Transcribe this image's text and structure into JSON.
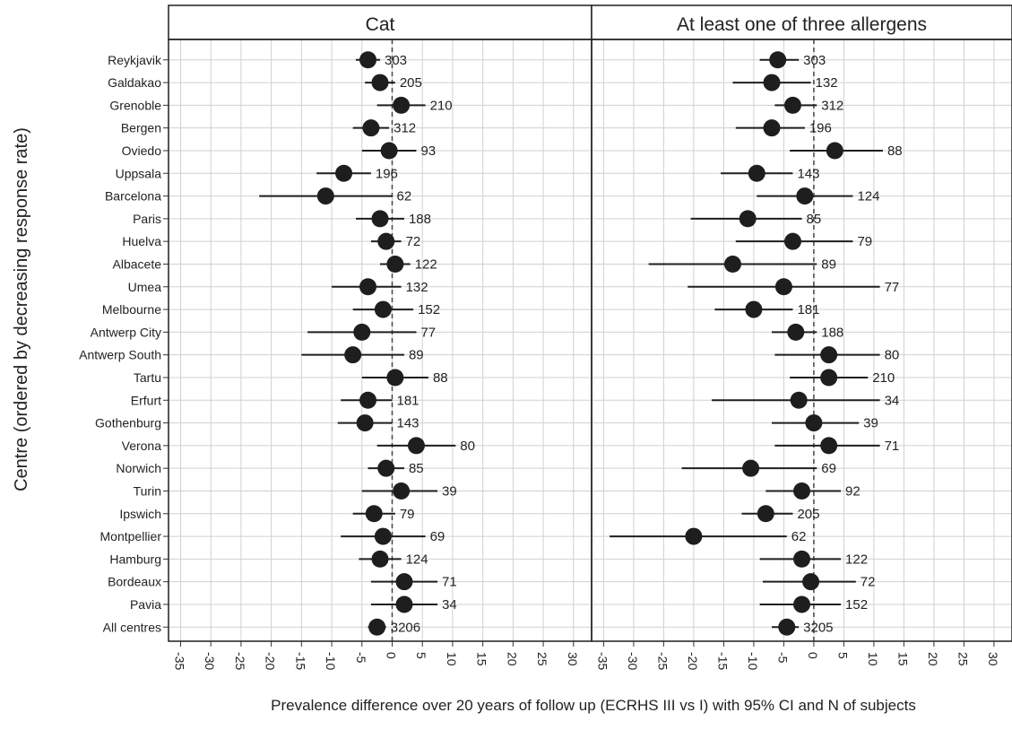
{
  "figure": {
    "ylabel": "Centre (ordered by decreasing response rate)",
    "xlabel": "Prevalence difference over 20 years of follow up (ECRHS III vs I) with 95% CI and N of subjects"
  },
  "chart_data": {
    "type": "scatter",
    "subtype": "forest-plot",
    "centres": [
      "Reykjavik",
      "Galdakao",
      "Grenoble",
      "Bergen",
      "Oviedo",
      "Uppsala",
      "Barcelona",
      "Paris",
      "Huelva",
      "Albacete",
      "Umea",
      "Melbourne",
      "Antwerp City",
      "Antwerp South",
      "Tartu",
      "Erfurt",
      "Gothenburg",
      "Verona",
      "Norwich",
      "Turin",
      "Ipswich",
      "Montpellier",
      "Hamburg",
      "Bordeaux",
      "Pavia",
      "All centres"
    ],
    "xlim": [
      -37,
      33
    ],
    "xticks": [
      "-35",
      "-30",
      "-25",
      "-20",
      "-15",
      "-10",
      "-5",
      "0",
      "5",
      "10",
      "15",
      "20",
      "25",
      "30"
    ],
    "reference_line": 0,
    "grid": true,
    "panels": [
      {
        "title": "Cat",
        "estimates": [
          -4.0,
          -2.0,
          1.5,
          -3.5,
          -0.5,
          -8.0,
          -11.0,
          -2.0,
          -1.0,
          0.5,
          -4.0,
          -1.5,
          -5.0,
          -6.5,
          0.5,
          -4.0,
          -4.5,
          4.0,
          -1.0,
          1.5,
          -3.0,
          -1.5,
          -2.0,
          2.0,
          2.0,
          -2.5
        ],
        "ci_low": [
          -6.0,
          -4.5,
          -2.5,
          -6.5,
          -5.0,
          -12.5,
          -22.0,
          -6.0,
          -3.5,
          -2.0,
          -10.0,
          -6.5,
          -14.0,
          -15.0,
          -5.0,
          -8.5,
          -9.0,
          -2.5,
          -4.0,
          -5.0,
          -6.5,
          -8.5,
          -5.5,
          -3.5,
          -3.5,
          -4.0
        ],
        "ci_high": [
          -2.0,
          0.5,
          5.5,
          -0.5,
          4.0,
          -3.5,
          0.0,
          2.0,
          1.5,
          3.0,
          1.5,
          3.5,
          4.0,
          2.0,
          6.0,
          0.0,
          0.0,
          10.5,
          2.0,
          7.5,
          0.5,
          5.5,
          1.5,
          7.5,
          7.5,
          -1.0
        ],
        "n": [
          "303",
          "205",
          "210",
          "312",
          "93",
          "196",
          "62",
          "188",
          "72",
          "122",
          "132",
          "152",
          "77",
          "89",
          "88",
          "181",
          "143",
          "80",
          "85",
          "39",
          "79",
          "69",
          "124",
          "71",
          "34",
          "3206"
        ]
      },
      {
        "title": "At least one of three allergens",
        "estimates": [
          -6.0,
          -7.0,
          -3.5,
          -7.0,
          3.5,
          -9.5,
          -1.5,
          -11.0,
          -3.5,
          -13.5,
          -5.0,
          -10.0,
          -3.0,
          2.5,
          2.5,
          -2.5,
          0.0,
          2.5,
          -10.5,
          -2.0,
          -8.0,
          -20.0,
          -2.0,
          -0.5,
          -2.0,
          -4.5
        ],
        "ci_low": [
          -9.0,
          -13.5,
          -6.5,
          -13.0,
          -4.0,
          -15.5,
          -9.5,
          -20.5,
          -13.0,
          -27.5,
          -21.0,
          -16.5,
          -7.0,
          -6.5,
          -4.0,
          -17.0,
          -7.0,
          -6.5,
          -22.0,
          -8.0,
          -12.0,
          -34.0,
          -9.0,
          -8.5,
          -9.0,
          -7.0
        ],
        "ci_high": [
          -2.5,
          -0.5,
          0.5,
          -1.5,
          11.5,
          -3.5,
          6.5,
          -2.0,
          6.5,
          0.5,
          11.0,
          -3.5,
          0.5,
          11.0,
          9.0,
          11.0,
          7.5,
          11.0,
          0.5,
          4.5,
          -3.5,
          -4.5,
          4.5,
          7.0,
          4.5,
          -2.5
        ],
        "n": [
          "303",
          "132",
          "312",
          "196",
          "88",
          "143",
          "124",
          "85",
          "79",
          "89",
          "77",
          "181",
          "188",
          "80",
          "210",
          "34",
          "39",
          "71",
          "69",
          "92",
          "205",
          "62",
          "122",
          "72",
          "152",
          "3205"
        ]
      }
    ]
  }
}
